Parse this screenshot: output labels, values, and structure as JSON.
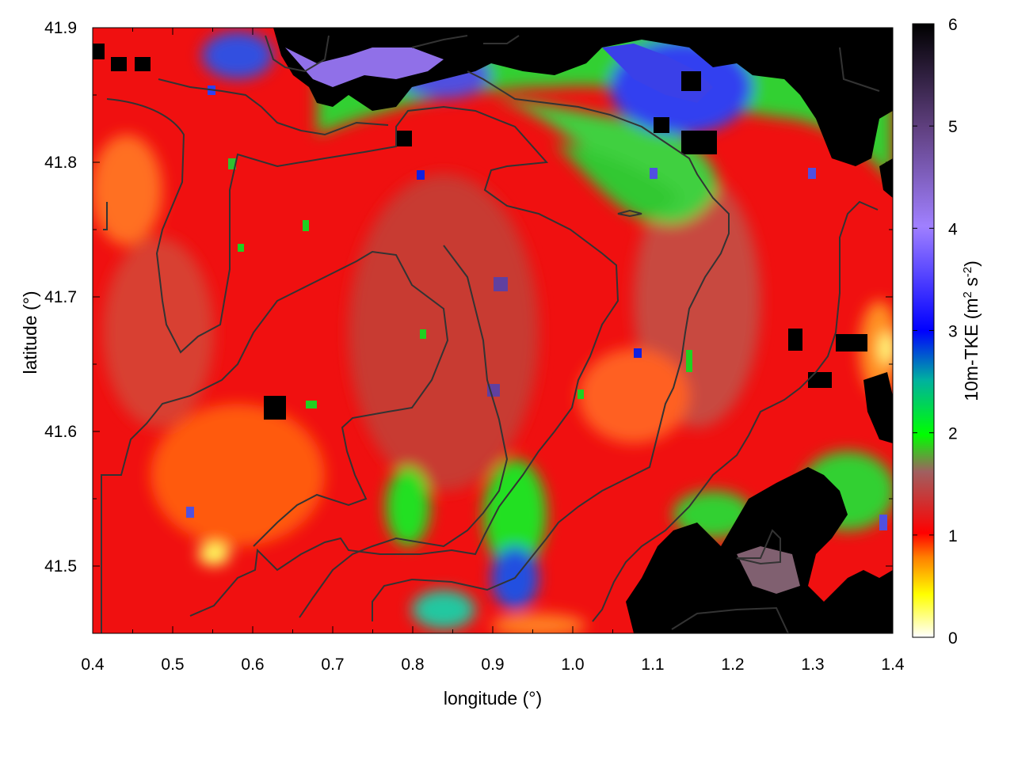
{
  "chart_data": {
    "type": "heatmap",
    "title": "",
    "xlabel": "longitude (°)",
    "ylabel": "latitude (°)",
    "xlim": [
      0.4,
      1.4
    ],
    "ylim": [
      41.45,
      41.9
    ],
    "x_ticks": [
      "0.4",
      "0.5",
      "0.6",
      "0.7",
      "0.8",
      "0.9",
      "1.0",
      "1.1",
      "1.2",
      "1.3",
      "1.4"
    ],
    "y_ticks": [
      "41.5",
      "41.6",
      "41.7",
      "41.8",
      "41.9"
    ],
    "colorbar": {
      "label_parts": [
        "10m-TKE (m",
        "2",
        " s",
        "-2",
        ")"
      ],
      "range": [
        0,
        6
      ],
      "ticks": [
        "0",
        "1",
        "2",
        "3",
        "4",
        "5",
        "6"
      ],
      "stops": [
        {
          "value": 0,
          "color": "#ffffff"
        },
        {
          "value": 0.4,
          "color": "#ffff00"
        },
        {
          "value": 0.8,
          "color": "#ff8000"
        },
        {
          "value": 1.0,
          "color": "#ff0000"
        },
        {
          "value": 1.6,
          "color": "#a06060"
        },
        {
          "value": 2.0,
          "color": "#00ff00"
        },
        {
          "value": 2.5,
          "color": "#00b0a0"
        },
        {
          "value": 3.0,
          "color": "#0000ff"
        },
        {
          "value": 4.0,
          "color": "#a080ff"
        },
        {
          "value": 5.0,
          "color": "#604080"
        },
        {
          "value": 6.0,
          "color": "#000000"
        }
      ]
    },
    "field_description": "Predominantly ~1 m2 s-2 (red) over most of the domain; green/blue 2-3 band across the north (41.78-41.85) and patches near 0.8-1.0 lon, 41.45-41.57 lat; black/purple >5 values along the north edge and in the south-east corner (1.1-1.4 lon, 41.45-41.58 lat); orange/yellow <1 spots in the south-west (0.55 lon, 41.51 lat) and east edge.",
    "contour_color": "#333333"
  }
}
